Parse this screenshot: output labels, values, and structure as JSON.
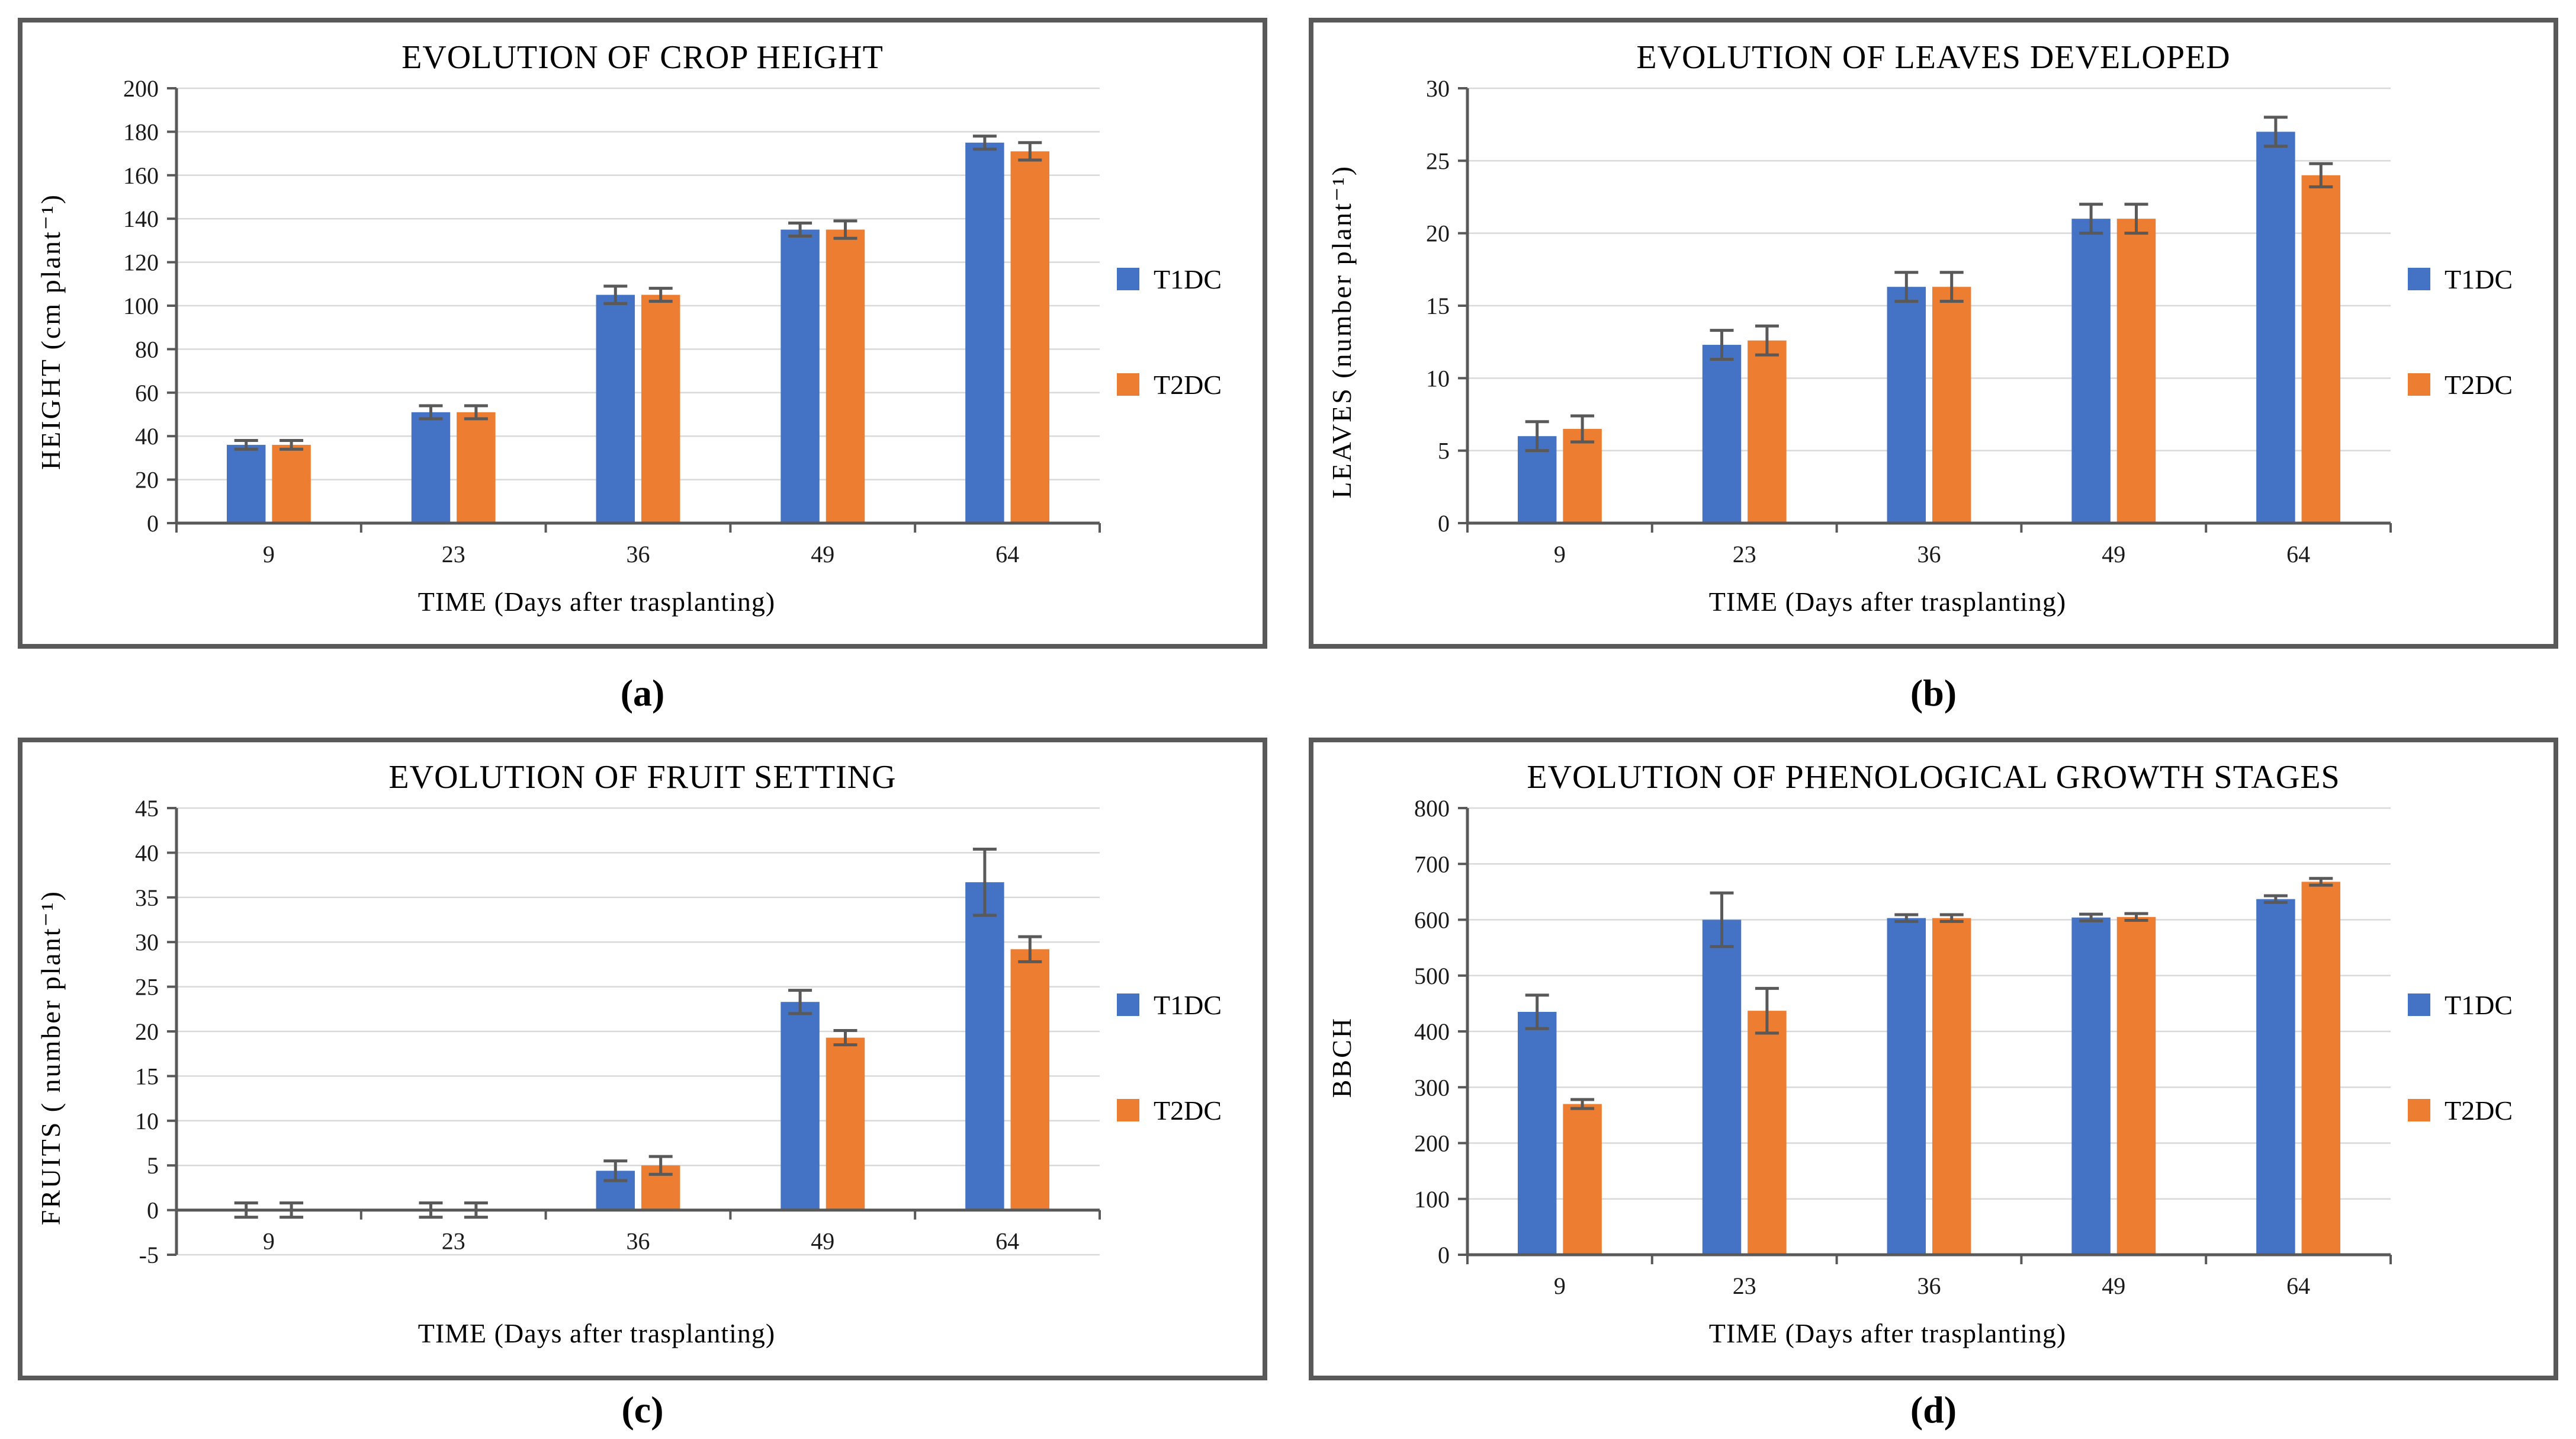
{
  "colors": {
    "t1dc": "#4472C4",
    "t2dc": "#ED7D31",
    "axis": "#595959",
    "grid": "#D9D9D9",
    "error": "#595959",
    "panel_border": "#595959",
    "background": "#FFFFFF"
  },
  "chart_data": [
    {
      "type": "bar",
      "caption": "(a)",
      "title": "EVOLUTION OF CROP HEIGHT",
      "ylabel": "HEIGHT (cm plant⁻¹)",
      "xlabel": "TIME (Days after trasplanting)",
      "categories": [
        "9",
        "23",
        "36",
        "49",
        "64"
      ],
      "ylim": [
        0,
        200
      ],
      "ystep": 20,
      "grid": true,
      "legend_position": "right",
      "series": [
        {
          "name": "T1DC",
          "color": "#4472C4",
          "values": [
            36,
            51,
            105,
            135,
            175
          ],
          "errors": [
            2,
            3,
            4,
            3,
            3
          ]
        },
        {
          "name": "T2DC",
          "color": "#ED7D31",
          "values": [
            36,
            51,
            105,
            135,
            171
          ],
          "errors": [
            2,
            3,
            3,
            4,
            4
          ]
        }
      ]
    },
    {
      "type": "bar",
      "caption": "(b)",
      "title": "EVOLUTION OF LEAVES DEVELOPED",
      "ylabel": "LEAVES (number plant⁻¹)",
      "xlabel": "TIME (Days after trasplanting)",
      "categories": [
        "9",
        "23",
        "36",
        "49",
        "64"
      ],
      "ylim": [
        0,
        30
      ],
      "ystep": 5,
      "grid": true,
      "legend_position": "right",
      "series": [
        {
          "name": "T1DC",
          "color": "#4472C4",
          "values": [
            6,
            12.3,
            16.3,
            21,
            27
          ],
          "errors": [
            1,
            1,
            1,
            1,
            1
          ]
        },
        {
          "name": "T2DC",
          "color": "#ED7D31",
          "values": [
            6.5,
            12.6,
            16.3,
            21,
            24
          ],
          "errors": [
            0.9,
            1,
            1,
            1,
            0.8
          ]
        }
      ]
    },
    {
      "type": "bar",
      "caption": "(c)",
      "title": "EVOLUTION OF FRUIT SETTING",
      "ylabel": "FRUITS ( number plant⁻¹)",
      "xlabel": "TIME (Days after trasplanting)",
      "categories": [
        "9",
        "23",
        "36",
        "49",
        "64"
      ],
      "ylim": [
        -5,
        45
      ],
      "ystep": 5,
      "grid": true,
      "legend_position": "right",
      "series": [
        {
          "name": "T1DC",
          "color": "#4472C4",
          "values": [
            0,
            0,
            4.4,
            23.3,
            36.7
          ],
          "errors": [
            0.8,
            0.8,
            1.1,
            1.3,
            3.7
          ]
        },
        {
          "name": "T2DC",
          "color": "#ED7D31",
          "values": [
            0,
            0,
            5,
            19.3,
            29.2
          ],
          "errors": [
            0.8,
            0.8,
            1,
            0.8,
            1.4
          ]
        }
      ]
    },
    {
      "type": "bar",
      "caption": "(d)",
      "title": "EVOLUTION OF PHENOLOGICAL GROWTH STAGES",
      "ylabel": "BBCH",
      "xlabel": "TIME (Days after trasplanting)",
      "categories": [
        "9",
        "23",
        "36",
        "49",
        "64"
      ],
      "ylim": [
        0,
        800
      ],
      "ystep": 100,
      "grid": true,
      "legend_position": "right",
      "series": [
        {
          "name": "T1DC",
          "color": "#4472C4",
          "values": [
            435,
            600,
            603,
            604,
            637
          ],
          "errors": [
            30,
            48,
            6,
            6,
            6
          ]
        },
        {
          "name": "T2DC",
          "color": "#ED7D31",
          "values": [
            270,
            437,
            603,
            605,
            668
          ],
          "errors": [
            8,
            40,
            6,
            6,
            6
          ]
        }
      ]
    }
  ]
}
